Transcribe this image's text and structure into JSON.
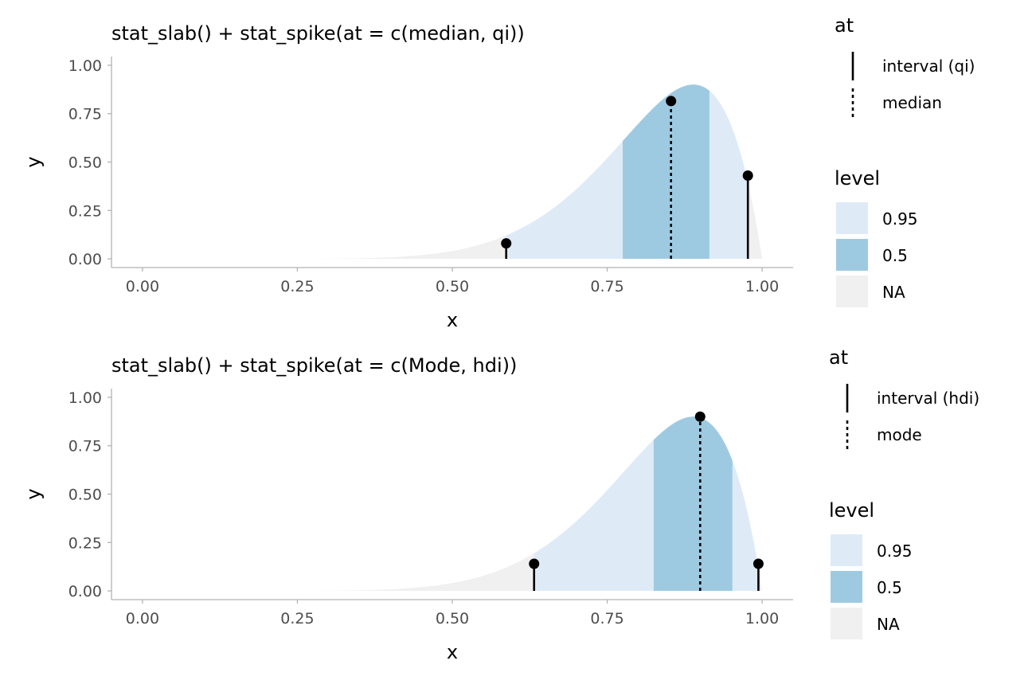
{
  "chart_data": [
    {
      "type": "area",
      "title": "stat_slab() + stat_spike(at = c(median, qi))",
      "xlabel": "x",
      "ylabel": "y",
      "xlim": [
        -0.05,
        1.05
      ],
      "ylim": [
        -0.045,
        1.045
      ],
      "x_ticks": [
        "0.00",
        "0.25",
        "0.50",
        "0.75",
        "1.00"
      ],
      "y_ticks": [
        "0.00",
        "0.25",
        "0.50",
        "0.75",
        "1.00"
      ],
      "grid": false,
      "density": {
        "a": 9,
        "b": 2,
        "scale": 0.9
      },
      "intervals": [
        {
          "level": "0.95",
          "from": 0.587,
          "to": 0.977,
          "color": "#deebf7"
        },
        {
          "level": "0.5",
          "from": 0.775,
          "to": 0.915,
          "color": "#9ecae1"
        }
      ],
      "outside_color": "#f0f0f0",
      "spikes": [
        {
          "at": "interval (qi)",
          "x": 0.587,
          "y": 0.08,
          "style": "solid"
        },
        {
          "at": "median",
          "x": 0.853,
          "y": 0.815,
          "style": "dashed"
        },
        {
          "at": "interval (qi)",
          "x": 0.977,
          "y": 0.43,
          "style": "solid"
        }
      ],
      "legend_at": {
        "title": "at",
        "items": [
          {
            "label": "interval (qi)",
            "style": "solid"
          },
          {
            "label": "median",
            "style": "dashed"
          }
        ]
      },
      "legend_level": {
        "title": "level",
        "items": [
          {
            "label": "0.95",
            "color": "#deebf7"
          },
          {
            "label": "0.5",
            "color": "#9ecae1"
          },
          {
            "label": "NA",
            "color": "#f0f0f0"
          }
        ]
      },
      "legend_position": "right"
    },
    {
      "type": "area",
      "title": "stat_slab() + stat_spike(at = c(Mode, hdi))",
      "xlabel": "x",
      "ylabel": "y",
      "xlim": [
        -0.05,
        1.05
      ],
      "ylim": [
        -0.045,
        1.045
      ],
      "x_ticks": [
        "0.00",
        "0.25",
        "0.50",
        "0.75",
        "1.00"
      ],
      "y_ticks": [
        "0.00",
        "0.25",
        "0.50",
        "0.75",
        "1.00"
      ],
      "grid": false,
      "density": {
        "a": 9,
        "b": 2,
        "scale": 0.9
      },
      "intervals": [
        {
          "level": "0.95",
          "from": 0.632,
          "to": 0.994,
          "color": "#deebf7"
        },
        {
          "level": "0.5",
          "from": 0.825,
          "to": 0.952,
          "color": "#9ecae1"
        }
      ],
      "outside_color": "#f0f0f0",
      "spikes": [
        {
          "at": "interval (hdi)",
          "x": 0.632,
          "y": 0.14,
          "style": "solid"
        },
        {
          "at": "mode",
          "x": 0.9,
          "y": 0.9,
          "style": "dashed"
        },
        {
          "at": "interval (hdi)",
          "x": 0.994,
          "y": 0.14,
          "style": "solid"
        }
      ],
      "legend_at": {
        "title": "at",
        "items": [
          {
            "label": "interval (hdi)",
            "style": "solid"
          },
          {
            "label": "mode",
            "style": "dashed"
          }
        ]
      },
      "legend_level": {
        "title": "level",
        "items": [
          {
            "label": "0.95",
            "color": "#deebf7"
          },
          {
            "label": "0.5",
            "color": "#9ecae1"
          },
          {
            "label": "NA",
            "color": "#f0f0f0"
          }
        ]
      },
      "legend_position": "right"
    }
  ]
}
